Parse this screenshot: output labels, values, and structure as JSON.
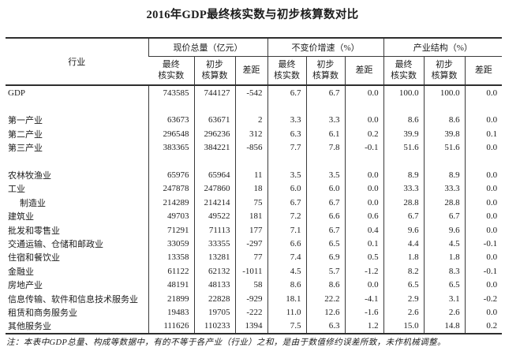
{
  "title": "2016年GDP最终核实数与初步核算数对比",
  "table": {
    "industry_header": "行业",
    "groups": [
      {
        "label": "现价总量（亿元）"
      },
      {
        "label": "不变价增速（%）"
      },
      {
        "label": "产业结构（%）"
      }
    ],
    "subheaders": [
      {
        "l1": "最终",
        "l2": "核实数"
      },
      {
        "l1": "初步",
        "l2": "核算数"
      },
      {
        "l1": "差距",
        "l2": ""
      }
    ],
    "rows": [
      {
        "label": "GDP",
        "values": [
          "743585",
          "744127",
          "-542",
          "6.7",
          "6.7",
          "0.0",
          "100.0",
          "100.0",
          "0.0"
        ]
      },
      {
        "label": "",
        "blank": true,
        "values": [
          "",
          "",
          "",
          "",
          "",
          "",
          "",
          "",
          ""
        ]
      },
      {
        "label": "第一产业",
        "values": [
          "63673",
          "63671",
          "2",
          "3.3",
          "3.3",
          "0.0",
          "8.6",
          "8.6",
          "0.0"
        ]
      },
      {
        "label": "第二产业",
        "values": [
          "296548",
          "296236",
          "312",
          "6.3",
          "6.1",
          "0.2",
          "39.9",
          "39.8",
          "0.1"
        ]
      },
      {
        "label": "第三产业",
        "values": [
          "383365",
          "384221",
          "-856",
          "7.7",
          "7.8",
          "-0.1",
          "51.6",
          "51.6",
          "0.0"
        ]
      },
      {
        "label": "",
        "blank": true,
        "values": [
          "",
          "",
          "",
          "",
          "",
          "",
          "",
          "",
          ""
        ]
      },
      {
        "label": "农林牧渔业",
        "values": [
          "65976",
          "65964",
          "11",
          "3.5",
          "3.5",
          "0.0",
          "8.9",
          "8.9",
          "0.0"
        ]
      },
      {
        "label": "工业",
        "values": [
          "247878",
          "247860",
          "18",
          "6.0",
          "6.0",
          "0.0",
          "33.3",
          "33.3",
          "0.0"
        ]
      },
      {
        "label": "制造业",
        "indent": true,
        "values": [
          "214289",
          "214214",
          "75",
          "6.7",
          "6.7",
          "0.0",
          "28.8",
          "28.8",
          "0.0"
        ]
      },
      {
        "label": "建筑业",
        "values": [
          "49703",
          "49522",
          "181",
          "7.2",
          "6.6",
          "0.6",
          "6.7",
          "6.7",
          "0.0"
        ]
      },
      {
        "label": "批发和零售业",
        "values": [
          "71291",
          "71113",
          "177",
          "7.1",
          "6.7",
          "0.4",
          "9.6",
          "9.6",
          "0.0"
        ]
      },
      {
        "label": "交通运输、仓储和邮政业",
        "values": [
          "33059",
          "33355",
          "-297",
          "6.6",
          "6.5",
          "0.1",
          "4.4",
          "4.5",
          "-0.1"
        ]
      },
      {
        "label": "住宿和餐饮业",
        "values": [
          "13358",
          "13281",
          "77",
          "7.4",
          "6.9",
          "0.5",
          "1.8",
          "1.8",
          "0.0"
        ]
      },
      {
        "label": "金融业",
        "values": [
          "61122",
          "62132",
          "-1011",
          "4.5",
          "5.7",
          "-1.2",
          "8.2",
          "8.3",
          "-0.1"
        ]
      },
      {
        "label": "房地产业",
        "values": [
          "48191",
          "48133",
          "58",
          "8.6",
          "8.6",
          "0.0",
          "6.5",
          "6.5",
          "0.0"
        ]
      },
      {
        "label": "信息传输、软件和信息技术服务业",
        "values": [
          "21899",
          "22828",
          "-929",
          "18.1",
          "22.2",
          "-4.1",
          "2.9",
          "3.1",
          "-0.2"
        ]
      },
      {
        "label": "租赁和商务服务业",
        "values": [
          "19483",
          "19705",
          "-222",
          "11.0",
          "12.6",
          "-1.6",
          "2.6",
          "2.6",
          "0.0"
        ]
      },
      {
        "label": "其他服务业",
        "values": [
          "111626",
          "110233",
          "1394",
          "7.5",
          "6.3",
          "1.2",
          "15.0",
          "14.8",
          "0.2"
        ]
      }
    ]
  },
  "note": "注：本表中GDP总量、构成等数据中，有的不等于各产业（行业）之和，是由于数值修约误差所致，未作机械调整。"
}
